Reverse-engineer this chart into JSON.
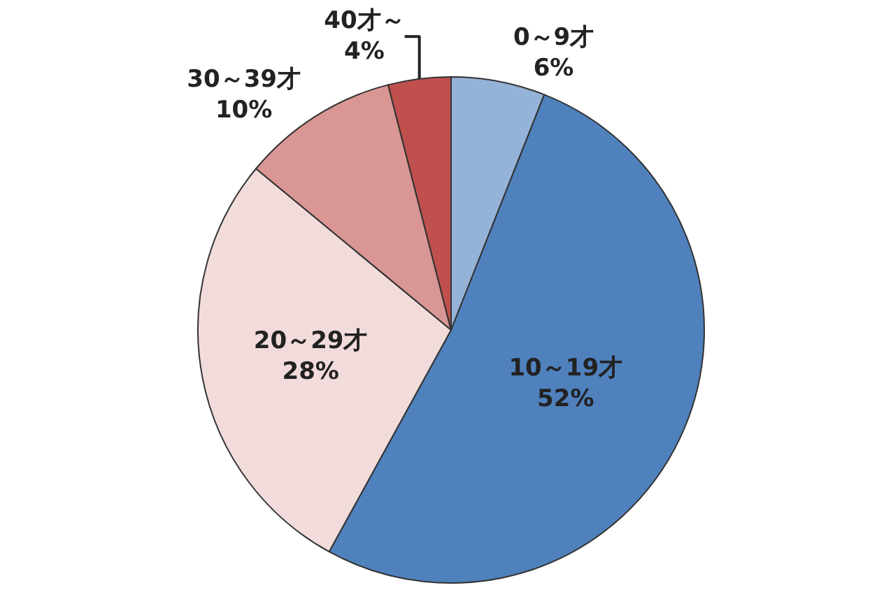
{
  "chart_data": {
    "type": "pie",
    "categories": [
      "0～9才",
      "10～19才",
      "20～29才",
      "30～39才",
      "40才～"
    ],
    "values": [
      6,
      52,
      28,
      10,
      4
    ],
    "value_labels": [
      "6%",
      "52%",
      "28%",
      "10%",
      "4%"
    ],
    "colors": [
      "#95b3d7",
      "#4f81bd",
      "#f2dcdb",
      "#d99694",
      "#c0504d"
    ]
  }
}
